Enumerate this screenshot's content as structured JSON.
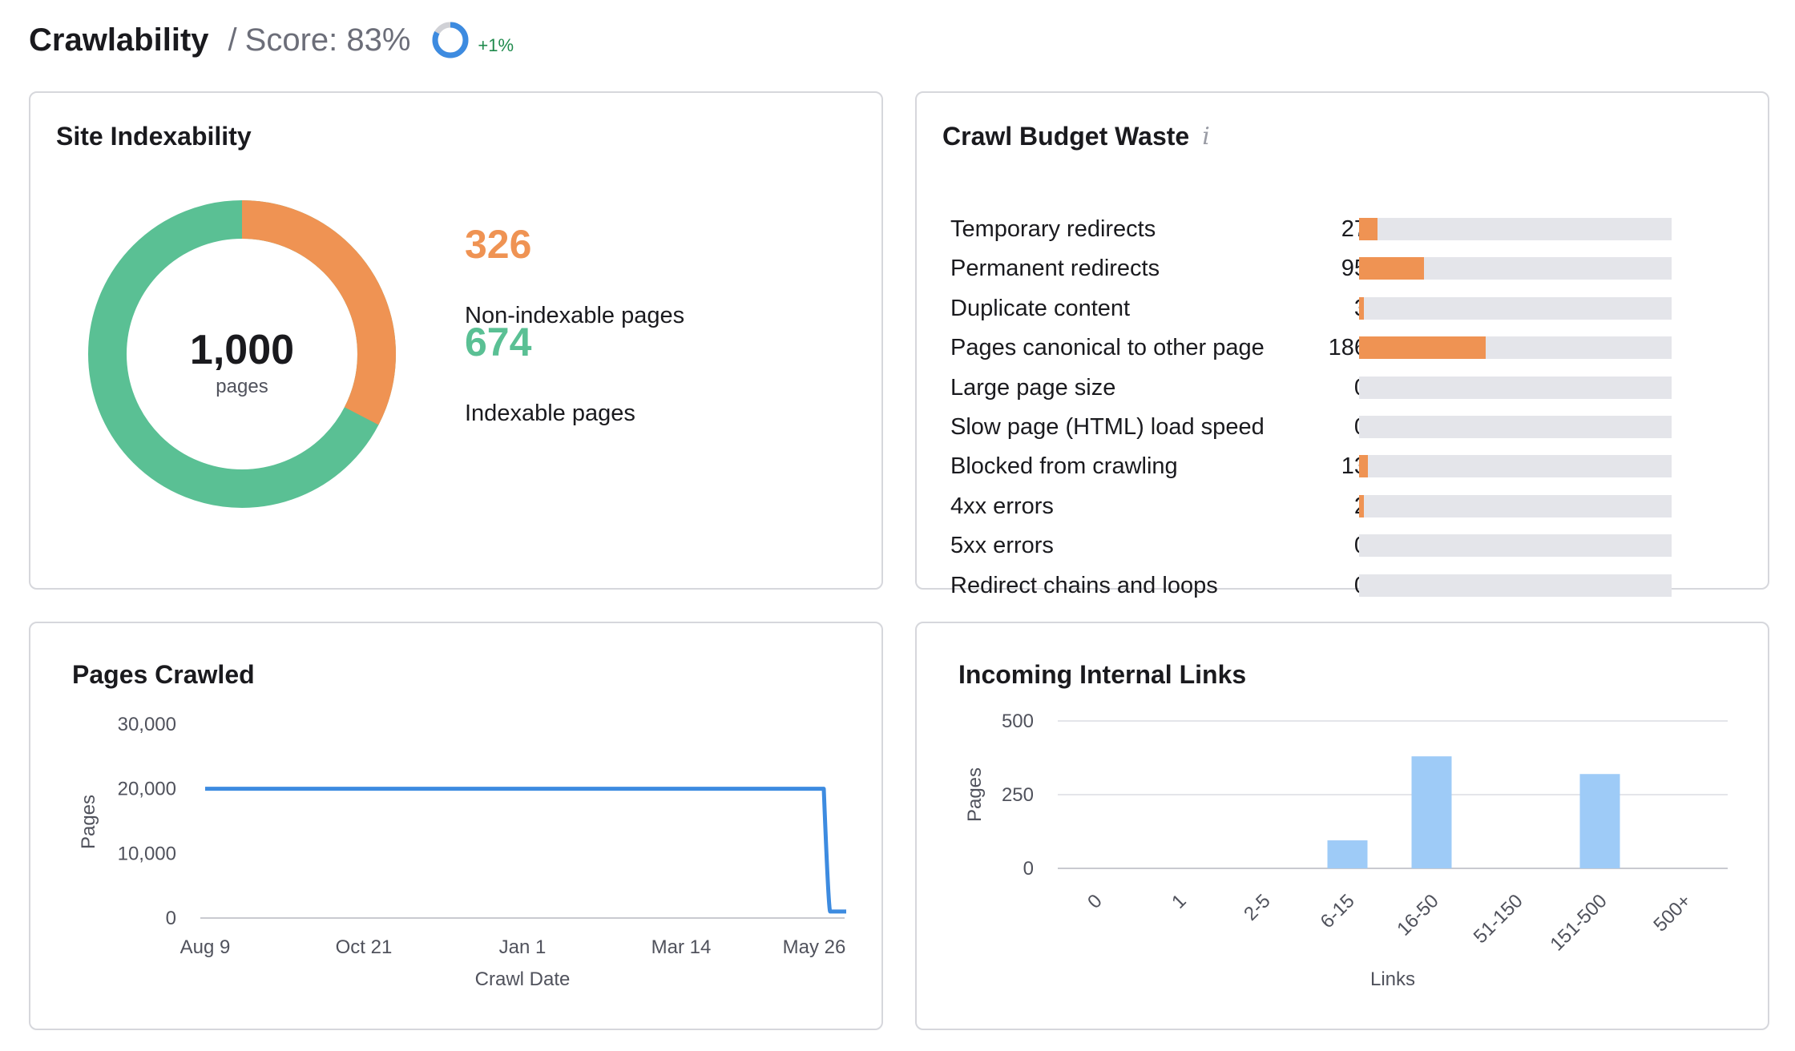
{
  "header": {
    "title": "Crawlability",
    "separator": "/",
    "score_label": "Score: 83%",
    "delta": "+1%",
    "score_value": 83
  },
  "site_indexability": {
    "title": "Site Indexability",
    "total_value": "1,000",
    "total_unit": "pages",
    "non_indexable": {
      "value": "326",
      "label": "Non-indexable pages",
      "color": "#ef9353"
    },
    "indexable": {
      "value": "674",
      "label": "Indexable pages",
      "color": "#5ac094"
    }
  },
  "crawl_budget": {
    "title": "Crawl Budget Waste",
    "info_icon": "info-icon",
    "bar_color": "#ef9353",
    "track_color": "#e4e5ea",
    "max_value": 460,
    "rows": [
      {
        "label": "Temporary redirects",
        "value": 27
      },
      {
        "label": "Permanent redirects",
        "value": 95
      },
      {
        "label": "Duplicate content",
        "value": 3
      },
      {
        "label": "Pages canonical to other page",
        "value": 186
      },
      {
        "label": "Large page size",
        "value": 0
      },
      {
        "label": "Slow page (HTML) load speed",
        "value": 0
      },
      {
        "label": "Blocked from crawling",
        "value": 13
      },
      {
        "label": "4xx errors",
        "value": 2
      },
      {
        "label": "5xx errors",
        "value": 0
      },
      {
        "label": "Redirect chains and loops",
        "value": 0
      }
    ]
  },
  "pages_crawled": {
    "title": "Pages Crawled",
    "chart_data": {
      "type": "line",
      "title": "Pages Crawled",
      "xlabel": "Crawl Date",
      "ylabel": "Pages",
      "ylim": [
        0,
        30000
      ],
      "y_ticks": [
        "0",
        "10,000",
        "20,000",
        "30,000"
      ],
      "x_ticks": [
        "Aug 9",
        "Oct 21",
        "Jan 1",
        "Mar 14",
        "May 26"
      ],
      "color": "#3d8be0",
      "points": [
        {
          "x": "Aug 9",
          "y": 20000
        },
        {
          "x": "May 26",
          "y": 20000
        },
        {
          "x": "Jun 3",
          "y": 1000
        }
      ]
    }
  },
  "incoming_links": {
    "title": "Incoming Internal Links",
    "chart_data": {
      "type": "bar",
      "title": "Incoming Internal Links",
      "xlabel": "Links",
      "ylabel": "Pages",
      "ylim": [
        0,
        500
      ],
      "y_ticks": [
        "0",
        "250",
        "500"
      ],
      "categories": [
        "0",
        "1",
        "2-5",
        "6-15",
        "16-50",
        "51-150",
        "151-500",
        "500+"
      ],
      "values": [
        0,
        0,
        0,
        95,
        380,
        0,
        320,
        0
      ],
      "color": "#9ecbf7",
      "grid": true
    }
  }
}
